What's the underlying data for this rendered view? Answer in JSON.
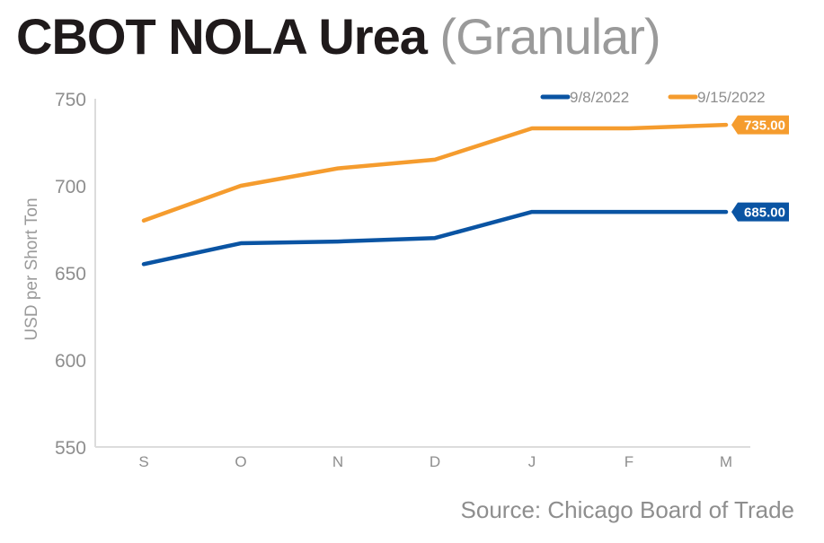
{
  "header": {
    "title_bold": "CBOT NOLA Urea",
    "title_light": "(Granular)"
  },
  "footer": {
    "source": "Source: Chicago Board of Trade"
  },
  "chart_data": {
    "type": "line",
    "title": "CBOT NOLA Urea (Granular)",
    "xlabel": "",
    "ylabel": "USD per Short Ton",
    "categories": [
      "S",
      "O",
      "N",
      "D",
      "J",
      "F",
      "M"
    ],
    "ylim": [
      550,
      750
    ],
    "yticks": [
      550,
      600,
      650,
      700,
      750
    ],
    "grid": false,
    "legend_position": "top-right",
    "series": [
      {
        "name": "9/8/2022",
        "color": "#0a54a3",
        "values": [
          655,
          667,
          668,
          670,
          685,
          685,
          685
        ],
        "end_label": "685.00"
      },
      {
        "name": "9/15/2022",
        "color": "#f59c2e",
        "values": [
          680,
          700,
          710,
          715,
          733,
          733,
          735
        ],
        "end_label": "735.00"
      }
    ]
  }
}
